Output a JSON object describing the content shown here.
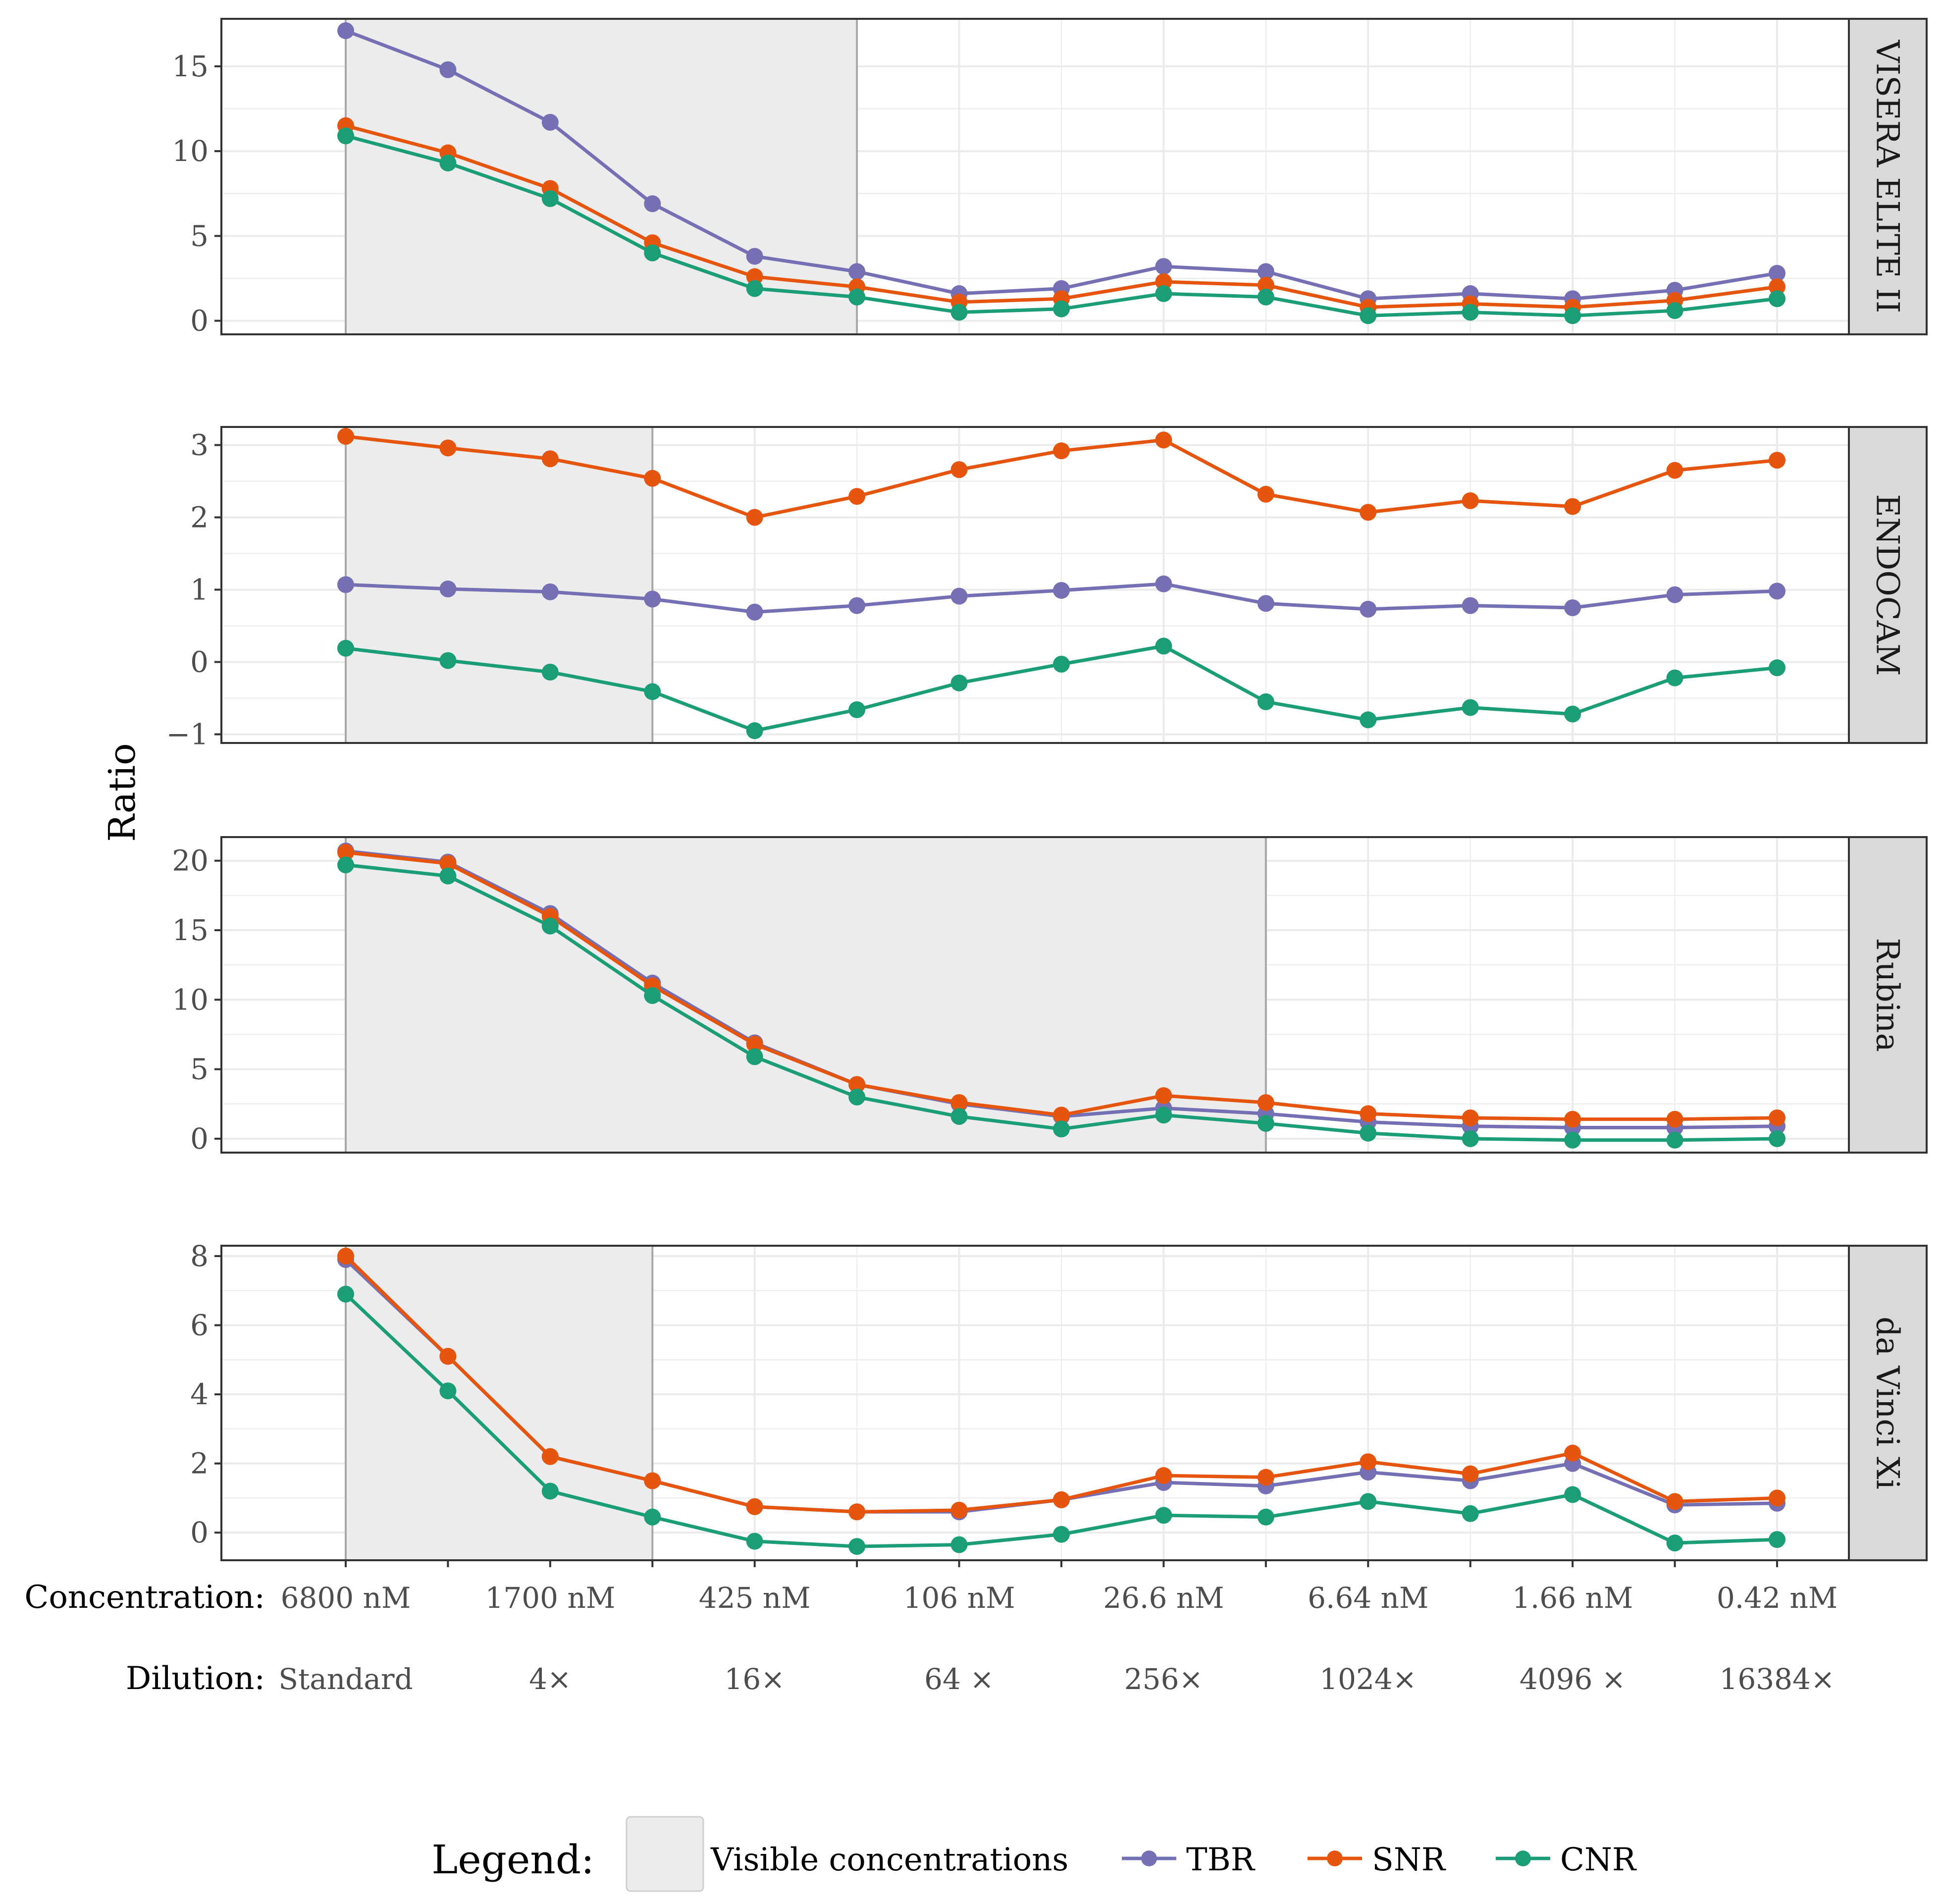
{
  "chart_data": {
    "type": "line",
    "ylabel": "Ratio",
    "x_axis_rows": {
      "concentration_label": "Concentration:",
      "concentration_ticks": [
        "6800 nM",
        "1700 nM",
        "425 nM",
        "106 nM",
        "26.6 nM",
        "6.64 nM",
        "1.66 nM",
        "0.42 nM"
      ],
      "dilution_label": "Dilution:",
      "dilution_ticks": [
        "Standard",
        "4×",
        "16×",
        "64 ×",
        "256×",
        "1024×",
        "4096 ×",
        "16384×"
      ]
    },
    "x_points": 15,
    "legend": {
      "title": "Legend:",
      "shade_label": "Visible concentrations",
      "entries": [
        "TBR",
        "SNR",
        "CNR"
      ]
    },
    "colors": {
      "TBR": "#7570b3",
      "SNR": "#e6550d",
      "CNR": "#1b9e77",
      "shade": "#ececec",
      "strip": "#d9d9d9",
      "grid": "#ebebeb"
    },
    "panels": [
      {
        "strip": "VISERA ELITE II",
        "ylim": [
          -0.8,
          17.8
        ],
        "yticks": [
          0,
          5,
          10,
          15
        ],
        "visible_up_to_index": 5,
        "series": [
          {
            "name": "TBR",
            "values": [
              17.1,
              14.8,
              11.7,
              6.9,
              3.8,
              2.9,
              1.6,
              1.9,
              3.2,
              2.9,
              1.3,
              1.6,
              1.3,
              1.8,
              2.8
            ]
          },
          {
            "name": "SNR",
            "values": [
              11.5,
              9.9,
              7.8,
              4.6,
              2.6,
              2.0,
              1.1,
              1.3,
              2.3,
              2.1,
              0.8,
              1.0,
              0.8,
              1.2,
              2.0
            ]
          },
          {
            "name": "CNR",
            "values": [
              10.9,
              9.3,
              7.2,
              4.0,
              1.9,
              1.4,
              0.5,
              0.7,
              1.6,
              1.4,
              0.3,
              0.5,
              0.3,
              0.6,
              1.3
            ]
          }
        ]
      },
      {
        "strip": "ENDOCAM",
        "ylim": [
          -1.12,
          3.25
        ],
        "yticks": [
          -1,
          0,
          1,
          2,
          3
        ],
        "visible_up_to_index": 3,
        "series": [
          {
            "name": "TBR",
            "values": [
              1.07,
              1.01,
              0.97,
              0.87,
              0.69,
              0.78,
              0.91,
              0.99,
              1.08,
              0.81,
              0.73,
              0.78,
              0.75,
              0.93,
              0.98
            ]
          },
          {
            "name": "SNR",
            "values": [
              3.12,
              2.96,
              2.81,
              2.54,
              2.0,
              2.29,
              2.66,
              2.92,
              3.07,
              2.32,
              2.07,
              2.23,
              2.15,
              2.65,
              2.79
            ]
          },
          {
            "name": "CNR",
            "values": [
              0.19,
              0.02,
              -0.14,
              -0.41,
              -0.95,
              -0.66,
              -0.29,
              -0.03,
              0.22,
              -0.55,
              -0.8,
              -0.63,
              -0.72,
              -0.22,
              -0.08
            ]
          }
        ]
      },
      {
        "strip": "Rubina",
        "ylim": [
          -1.0,
          21.7
        ],
        "yticks": [
          0,
          5,
          10,
          15,
          20
        ],
        "visible_up_to_index": 9,
        "series": [
          {
            "name": "TBR",
            "values": [
              20.7,
              19.9,
              16.2,
              11.2,
              6.9,
              3.9,
              2.5,
              1.6,
              2.2,
              1.8,
              1.2,
              0.9,
              0.8,
              0.8,
              0.9
            ]
          },
          {
            "name": "SNR",
            "values": [
              20.6,
              19.8,
              16.0,
              11.0,
              6.8,
              3.9,
              2.6,
              1.7,
              3.1,
              2.6,
              1.8,
              1.5,
              1.4,
              1.4,
              1.5
            ]
          },
          {
            "name": "CNR",
            "values": [
              19.7,
              18.9,
              15.3,
              10.3,
              5.9,
              3.0,
              1.6,
              0.7,
              1.7,
              1.1,
              0.4,
              0.0,
              -0.1,
              -0.1,
              0.0
            ]
          }
        ]
      },
      {
        "strip": "da Vinci Xi",
        "ylim": [
          -0.8,
          8.3
        ],
        "yticks": [
          0,
          2,
          4,
          6,
          8
        ],
        "visible_up_to_index": 3,
        "series": [
          {
            "name": "TBR",
            "values": [
              7.9,
              5.1,
              2.2,
              1.5,
              0.75,
              0.6,
              0.6,
              0.95,
              1.45,
              1.35,
              1.75,
              1.5,
              2.0,
              0.8,
              0.85
            ]
          },
          {
            "name": "SNR",
            "values": [
              8.0,
              5.1,
              2.2,
              1.5,
              0.75,
              0.6,
              0.65,
              0.95,
              1.65,
              1.6,
              2.05,
              1.7,
              2.3,
              0.9,
              1.0
            ]
          },
          {
            "name": "CNR",
            "values": [
              6.9,
              4.1,
              1.2,
              0.45,
              -0.25,
              -0.4,
              -0.35,
              -0.05,
              0.5,
              0.45,
              0.9,
              0.55,
              1.1,
              -0.3,
              -0.2
            ]
          }
        ]
      }
    ]
  }
}
